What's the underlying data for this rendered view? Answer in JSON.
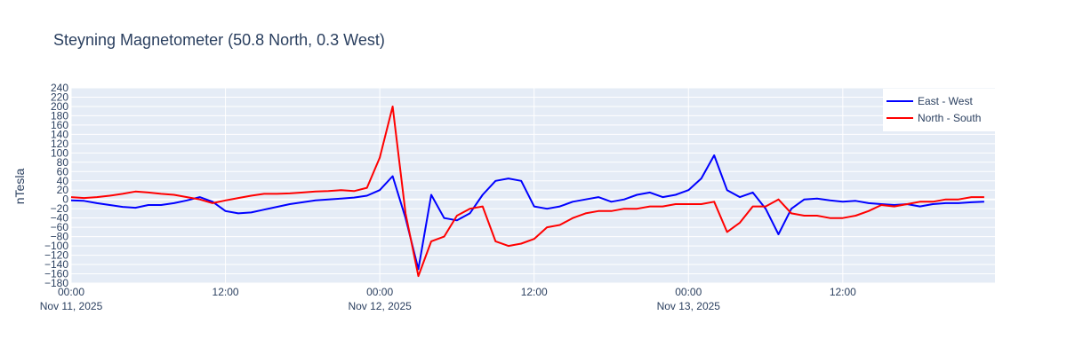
{
  "chart_data": {
    "type": "line",
    "title": "Steyning Magnetometer (50.8 North, 0.3 West)",
    "y_label": "nTesla",
    "x": [
      "2025-11-11 00:00",
      "2025-11-11 01:00",
      "2025-11-11 02:00",
      "2025-11-11 03:00",
      "2025-11-11 04:00",
      "2025-11-11 05:00",
      "2025-11-11 06:00",
      "2025-11-11 07:00",
      "2025-11-11 08:00",
      "2025-11-11 09:00",
      "2025-11-11 10:00",
      "2025-11-11 11:00",
      "2025-11-11 12:00",
      "2025-11-11 13:00",
      "2025-11-11 14:00",
      "2025-11-11 15:00",
      "2025-11-11 16:00",
      "2025-11-11 17:00",
      "2025-11-11 18:00",
      "2025-11-11 19:00",
      "2025-11-11 20:00",
      "2025-11-11 21:00",
      "2025-11-11 22:00",
      "2025-11-11 23:00",
      "2025-11-12 00:00",
      "2025-11-12 01:00",
      "2025-11-12 02:00",
      "2025-11-12 03:00",
      "2025-11-12 04:00",
      "2025-11-12 05:00",
      "2025-11-12 06:00",
      "2025-11-12 07:00",
      "2025-11-12 08:00",
      "2025-11-12 09:00",
      "2025-11-12 10:00",
      "2025-11-12 11:00",
      "2025-11-12 12:00",
      "2025-11-12 13:00",
      "2025-11-12 14:00",
      "2025-11-12 15:00",
      "2025-11-12 16:00",
      "2025-11-12 17:00",
      "2025-11-12 18:00",
      "2025-11-12 19:00",
      "2025-11-12 20:00",
      "2025-11-12 21:00",
      "2025-11-12 22:00",
      "2025-11-12 23:00",
      "2025-11-13 00:00",
      "2025-11-13 01:00",
      "2025-11-13 02:00",
      "2025-11-13 03:00",
      "2025-11-13 04:00",
      "2025-11-13 05:00",
      "2025-11-13 06:00",
      "2025-11-13 07:00",
      "2025-11-13 08:00",
      "2025-11-13 09:00",
      "2025-11-13 10:00",
      "2025-11-13 11:00",
      "2025-11-13 12:00",
      "2025-11-13 13:00",
      "2025-11-13 14:00",
      "2025-11-13 15:00",
      "2025-11-13 16:00",
      "2025-11-13 17:00",
      "2025-11-13 18:00",
      "2025-11-13 19:00",
      "2025-11-13 20:00",
      "2025-11-13 21:00",
      "2025-11-13 22:00",
      "2025-11-13 23:00"
    ],
    "series": [
      {
        "name": "East - West",
        "color": "#0000ff",
        "values": [
          -2,
          -3,
          -8,
          -12,
          -16,
          -18,
          -12,
          -12,
          -8,
          -2,
          5,
          -5,
          -25,
          -30,
          -28,
          -22,
          -16,
          -10,
          -6,
          -2,
          0,
          2,
          4,
          8,
          20,
          50,
          -40,
          -150,
          10,
          -40,
          -45,
          -30,
          10,
          40,
          45,
          40,
          -15,
          -20,
          -15,
          -5,
          0,
          5,
          -5,
          0,
          10,
          15,
          5,
          10,
          20,
          45,
          95,
          20,
          5,
          15,
          -20,
          -75,
          -20,
          0,
          2,
          -2,
          -5,
          -3,
          -8,
          -10,
          -12,
          -10,
          -15,
          -10,
          -8,
          -8,
          -6,
          -5
        ]
      },
      {
        "name": "North - South",
        "color": "#ff0000",
        "values": [
          5,
          3,
          5,
          8,
          12,
          17,
          15,
          12,
          10,
          5,
          0,
          -8,
          -2,
          3,
          8,
          12,
          12,
          13,
          15,
          17,
          18,
          20,
          18,
          25,
          90,
          200,
          -30,
          -165,
          -90,
          -80,
          -35,
          -20,
          -15,
          -90,
          -100,
          -95,
          -85,
          -60,
          -55,
          -40,
          -30,
          -25,
          -25,
          -20,
          -20,
          -15,
          -15,
          -10,
          -10,
          -10,
          -5,
          -70,
          -50,
          -15,
          -15,
          0,
          -30,
          -35,
          -35,
          -40,
          -40,
          -35,
          -25,
          -12,
          -15,
          -10,
          -5,
          -5,
          0,
          0,
          5,
          5
        ]
      }
    ],
    "xlim": [
      "2025-11-11 00:00",
      "2025-11-13 23:50"
    ],
    "xticks": [
      {
        "value": "2025-11-11 00:00",
        "label": "00:00\nNov 11, 2025"
      },
      {
        "value": "2025-11-11 12:00",
        "label": "12:00"
      },
      {
        "value": "2025-11-12 00:00",
        "label": "00:00\nNov 12, 2025"
      },
      {
        "value": "2025-11-12 12:00",
        "label": "12:00"
      },
      {
        "value": "2025-11-13 00:00",
        "label": "00:00\nNov 13, 2025"
      },
      {
        "value": "2025-11-13 12:00",
        "label": "12:00"
      }
    ],
    "ylim": [
      -180,
      240
    ],
    "yticks": [
      {
        "value": -180,
        "label": "−180"
      },
      {
        "value": -160,
        "label": "−160"
      },
      {
        "value": -140,
        "label": "−140"
      },
      {
        "value": -120,
        "label": "−120"
      },
      {
        "value": -100,
        "label": "−100"
      },
      {
        "value": -80,
        "label": "−80"
      },
      {
        "value": -60,
        "label": "−60"
      },
      {
        "value": -40,
        "label": "−40"
      },
      {
        "value": -20,
        "label": "−20"
      },
      0,
      20,
      40,
      60,
      80,
      100,
      120,
      140,
      160,
      180,
      200,
      220,
      240
    ],
    "grid": true,
    "legend": "top-right"
  }
}
